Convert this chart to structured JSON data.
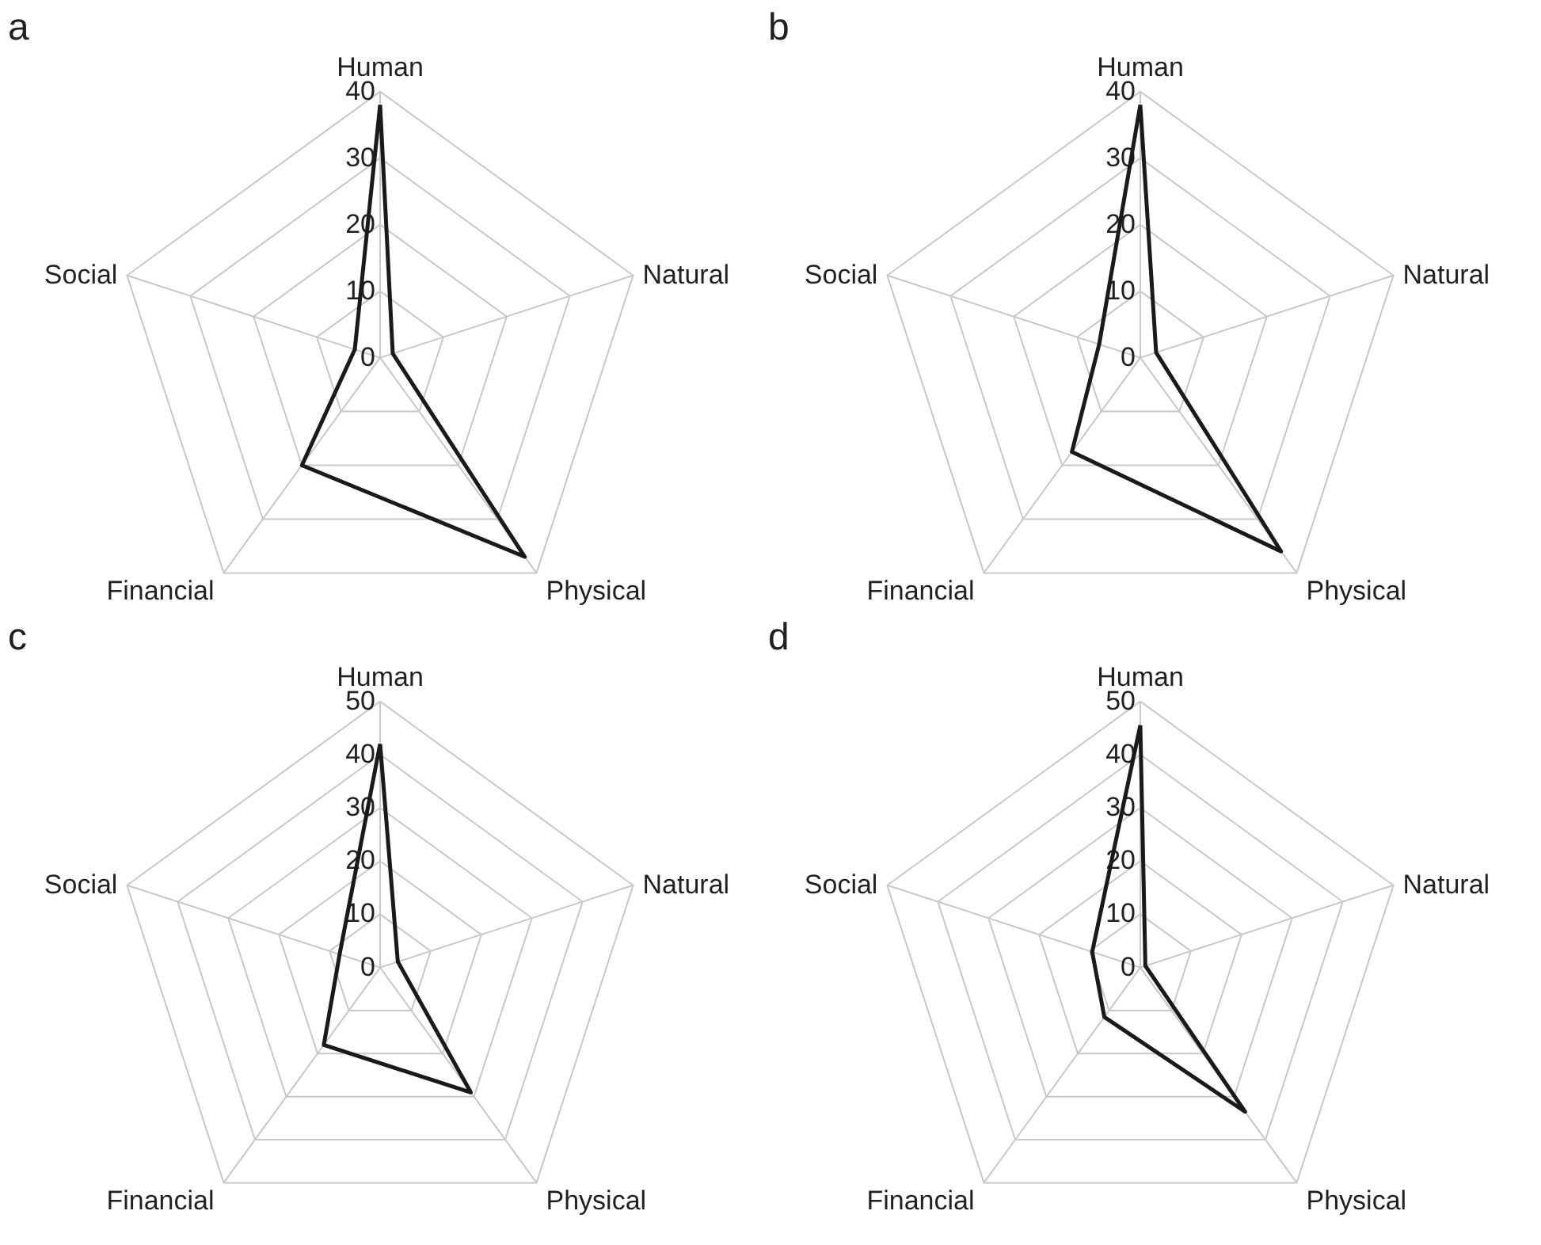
{
  "chart_data": [
    {
      "type": "radar",
      "title": "a",
      "categories": [
        "Human",
        "Natural",
        "Physical",
        "Financial",
        "Social"
      ],
      "ylim": [
        0,
        40
      ],
      "yticks": [
        0,
        10,
        20,
        30,
        40
      ],
      "grid": true,
      "series": [
        {
          "color": "#1a1a1a",
          "values": [
            38,
            2,
            37,
            20,
            4
          ]
        }
      ]
    },
    {
      "type": "radar",
      "title": "b",
      "categories": [
        "Human",
        "Natural",
        "Physical",
        "Financial",
        "Social"
      ],
      "ylim": [
        0,
        40
      ],
      "yticks": [
        0,
        10,
        20,
        30,
        40
      ],
      "grid": true,
      "series": [
        {
          "color": "#1a1a1a",
          "values": [
            38,
            2.5,
            36,
            17.5,
            6.5
          ]
        }
      ]
    },
    {
      "type": "radar",
      "title": "c",
      "categories": [
        "Human",
        "Natural",
        "Physical",
        "Financial",
        "Social"
      ],
      "ylim": [
        0,
        50
      ],
      "yticks": [
        0,
        10,
        20,
        30,
        40,
        50
      ],
      "grid": true,
      "series": [
        {
          "color": "#1a1a1a",
          "values": [
            42,
            3.5,
            29,
            18,
            8
          ]
        }
      ]
    },
    {
      "type": "radar",
      "title": "d",
      "categories": [
        "Human",
        "Natural",
        "Physical",
        "Financial",
        "Social"
      ],
      "ylim": [
        0,
        50
      ],
      "yticks": [
        0,
        10,
        20,
        30,
        40,
        50
      ],
      "grid": true,
      "series": [
        {
          "color": "#1a1a1a",
          "values": [
            45.5,
            1,
            33.5,
            11.5,
            9.5
          ]
        }
      ]
    }
  ]
}
